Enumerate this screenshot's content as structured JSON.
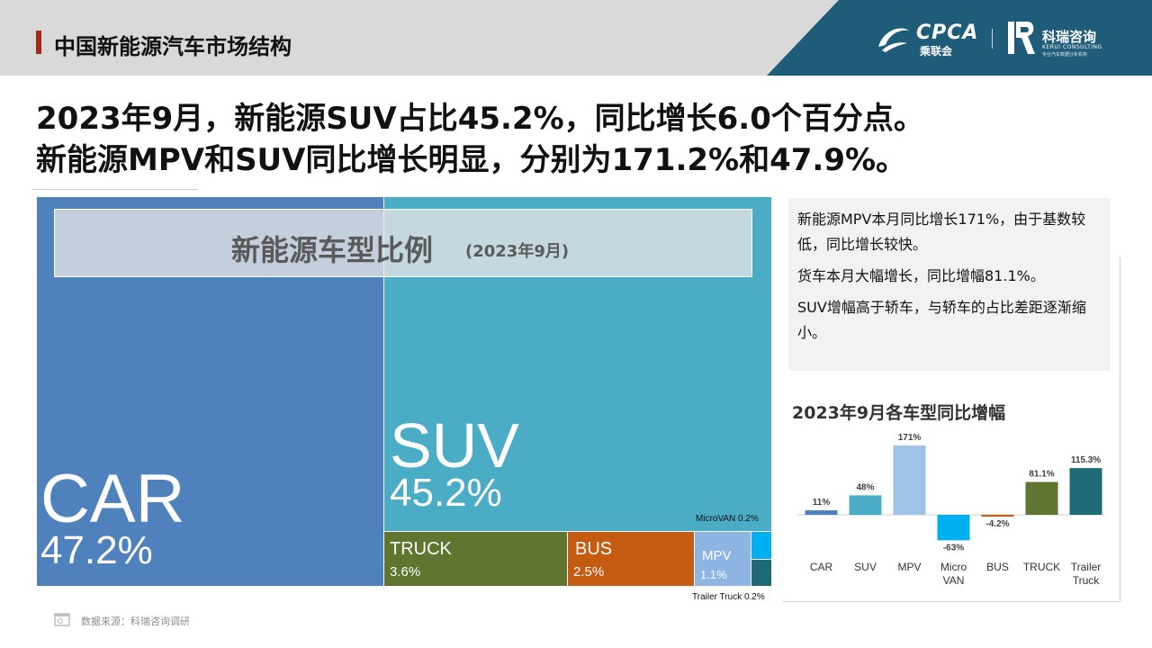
{
  "header": {
    "title": "中国新能源汽车市场结构",
    "logos": {
      "cpca_text": "CPCA",
      "cpca_cn": "乘联会",
      "kerui_cn": "科瑞咨询",
      "kerui_en": "KERUI CONSULTING",
      "kerui_small": "专业汽车数据分析机构"
    }
  },
  "headline": {
    "line1": "2023年9月，新能源SUV占比45.2%，同比增长6.0个百分点。",
    "line2": "新能源MPV和SUV同比增长明显，分别为171.2%和47.9%。"
  },
  "treemap": {
    "title": "新能源车型比例",
    "subtitle": "(2023年9月)",
    "tiles": {
      "car": {
        "name": "CAR",
        "share": "47.2%"
      },
      "suv": {
        "name": "SUV",
        "share": "45.2%"
      },
      "truck": {
        "name": "TRUCK",
        "share": "3.6%"
      },
      "bus": {
        "name": "BUS",
        "share": "2.5%"
      },
      "mpv": {
        "name": "MPV",
        "share": "1.1%"
      }
    },
    "labels": {
      "microvan": "MicroVAN 0.2%",
      "trailer": "Trailer Truck 0.2%"
    }
  },
  "notes": [
    "新能源MPV本月同比增长171%，由于基数较低，同比增长较快。",
    "货车本月大幅增长，同比增幅81.1%。",
    "SUV增幅高于轿车，与轿车的占比差距逐渐缩小。"
  ],
  "chart_data": [
    {
      "type": "treemap",
      "title": "新能源车型比例",
      "subtitle": "(2023年9月)",
      "categories": [
        "CAR",
        "SUV",
        "TRUCK",
        "BUS",
        "MPV",
        "MicroVAN",
        "Trailer Truck"
      ],
      "values": [
        47.2,
        45.2,
        3.6,
        2.5,
        1.1,
        0.2,
        0.2
      ],
      "unit": "%",
      "colors": [
        "#4f81bd",
        "#4bacc6",
        "#5f7530",
        "#c55a11",
        "#8eb4e3",
        "#00b0f0",
        "#1f6b75"
      ]
    },
    {
      "type": "bar",
      "title": "2023年9月各车型同比增幅",
      "categories": [
        "CAR",
        "SUV",
        "MPV",
        "Micro VAN",
        "BUS",
        "TRUCK",
        "Trailer Truck"
      ],
      "values": [
        11,
        48,
        171,
        -63,
        -4.2,
        81.1,
        115.3
      ],
      "value_labels": [
        "11%",
        "48%",
        "171%",
        "-63%",
        "-4.2%",
        "81.1%",
        "115.3%"
      ],
      "colors": [
        "#4f81bd",
        "#4bacc6",
        "#9dc3e6",
        "#00b0f0",
        "#c55a11",
        "#5f7530",
        "#1f6b75"
      ],
      "ylim": [
        -70,
        180
      ],
      "grid": false,
      "legend": "none"
    }
  ],
  "footer": {
    "source": "数据来源：科瑞咨询调研"
  }
}
